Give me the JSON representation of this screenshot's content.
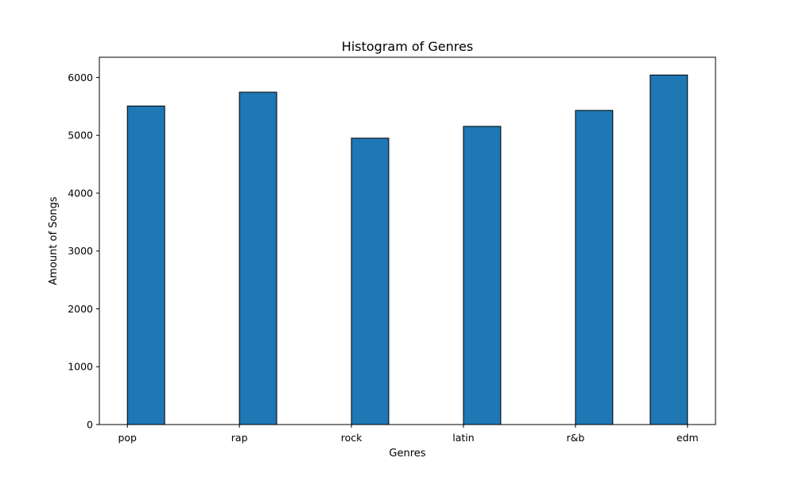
{
  "chart_data": {
    "type": "bar",
    "title": "Histogram of Genres",
    "xlabel": "Genres",
    "ylabel": "Amount of Songs",
    "categories": [
      "pop",
      "rap",
      "rock",
      "latin",
      "r&b",
      "edm"
    ],
    "category_positions": [
      0,
      1,
      2,
      3,
      4,
      5
    ],
    "bins": [
      {
        "x0": 0.0,
        "x1": 0.333,
        "value": 5507
      },
      {
        "x0": 1.0,
        "x1": 1.333,
        "value": 5746
      },
      {
        "x0": 2.0,
        "x1": 2.333,
        "value": 4951
      },
      {
        "x0": 3.0,
        "x1": 3.333,
        "value": 5155
      },
      {
        "x0": 4.0,
        "x1": 4.333,
        "value": 5431
      },
      {
        "x0": 4.667,
        "x1": 5.0,
        "value": 6043
      }
    ],
    "xlim": [
      -0.25,
      5.25
    ],
    "ylim": [
      0,
      6350
    ],
    "yticks": [
      0,
      1000,
      2000,
      3000,
      4000,
      5000,
      6000
    ],
    "colors": {
      "bar_fill": "#1f77b4",
      "bar_edge": "#000000",
      "axes": "#000000"
    },
    "grid": false,
    "legend": "none"
  }
}
